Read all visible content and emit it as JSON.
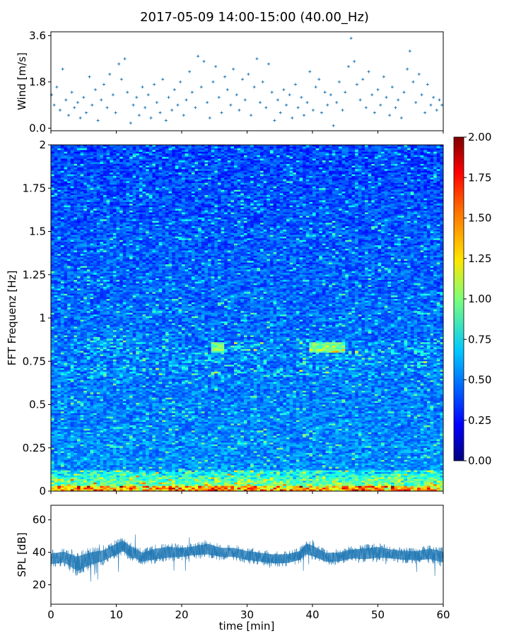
{
  "title": "2017-05-09 14:00-15:00 (40.00_Hz)",
  "chart_data": [
    {
      "type": "scatter",
      "ylabel": "Wind [m/s]",
      "xlim": [
        0,
        60
      ],
      "ylim": [
        0,
        3.6
      ],
      "yticks": [
        "0.0",
        "1.8",
        "3.6"
      ],
      "color": "#1f77b4",
      "marker": "+",
      "points": [
        [
          0.1,
          1.3
        ],
        [
          0.5,
          0.9
        ],
        [
          0.9,
          1.6
        ],
        [
          1.4,
          0.7
        ],
        [
          1.8,
          2.3
        ],
        [
          2.3,
          1.1
        ],
        [
          2.7,
          0.5
        ],
        [
          3.2,
          1.4
        ],
        [
          3.6,
          0.8
        ],
        [
          4.1,
          1.0
        ],
        [
          4.5,
          0.4
        ],
        [
          5.0,
          1.2
        ],
        [
          5.4,
          0.6
        ],
        [
          5.9,
          2.0
        ],
        [
          6.3,
          0.9
        ],
        [
          6.8,
          1.5
        ],
        [
          7.2,
          0.3
        ],
        [
          7.7,
          1.1
        ],
        [
          8.1,
          1.7
        ],
        [
          8.6,
          0.8
        ],
        [
          9.0,
          2.1
        ],
        [
          9.5,
          1.3
        ],
        [
          9.9,
          0.6
        ],
        [
          10.4,
          2.5
        ],
        [
          10.8,
          1.9
        ],
        [
          11.3,
          2.7
        ],
        [
          11.7,
          1.4
        ],
        [
          12.2,
          0.2
        ],
        [
          12.6,
          0.9
        ],
        [
          13.1,
          1.2
        ],
        [
          13.5,
          0.5
        ],
        [
          14.0,
          1.6
        ],
        [
          14.4,
          0.8
        ],
        [
          14.9,
          1.3
        ],
        [
          15.3,
          0.4
        ],
        [
          15.8,
          1.7
        ],
        [
          16.2,
          1.0
        ],
        [
          16.7,
          0.6
        ],
        [
          17.1,
          1.9
        ],
        [
          17.6,
          0.3
        ],
        [
          18.0,
          1.2
        ],
        [
          18.5,
          0.7
        ],
        [
          18.9,
          1.5
        ],
        [
          19.4,
          0.9
        ],
        [
          19.8,
          1.8
        ],
        [
          20.3,
          0.5
        ],
        [
          20.7,
          1.1
        ],
        [
          21.2,
          2.2
        ],
        [
          21.6,
          1.4
        ],
        [
          22.1,
          0.8
        ],
        [
          22.5,
          2.8
        ],
        [
          23.0,
          1.6
        ],
        [
          23.4,
          2.6
        ],
        [
          23.9,
          1.0
        ],
        [
          24.3,
          0.4
        ],
        [
          24.8,
          1.8
        ],
        [
          25.2,
          2.4
        ],
        [
          25.7,
          1.2
        ],
        [
          26.1,
          0.6
        ],
        [
          26.6,
          2.0
        ],
        [
          27.0,
          1.5
        ],
        [
          27.5,
          0.9
        ],
        [
          27.9,
          2.3
        ],
        [
          28.4,
          1.3
        ],
        [
          28.8,
          0.7
        ],
        [
          29.3,
          1.9
        ],
        [
          29.7,
          1.1
        ],
        [
          30.2,
          2.1
        ],
        [
          30.6,
          0.5
        ],
        [
          31.1,
          1.6
        ],
        [
          31.5,
          2.7
        ],
        [
          32.0,
          1.0
        ],
        [
          32.4,
          1.8
        ],
        [
          32.9,
          0.8
        ],
        [
          33.3,
          2.5
        ],
        [
          33.8,
          1.4
        ],
        [
          34.2,
          0.3
        ],
        [
          34.7,
          1.1
        ],
        [
          35.1,
          0.6
        ],
        [
          35.6,
          1.5
        ],
        [
          36.0,
          0.9
        ],
        [
          36.5,
          1.3
        ],
        [
          36.9,
          0.4
        ],
        [
          37.4,
          1.7
        ],
        [
          37.8,
          0.8
        ],
        [
          38.3,
          1.2
        ],
        [
          38.7,
          0.5
        ],
        [
          39.2,
          1.0
        ],
        [
          39.6,
          2.2
        ],
        [
          40.1,
          0.7
        ],
        [
          40.5,
          1.6
        ],
        [
          41.0,
          1.9
        ],
        [
          41.4,
          0.6
        ],
        [
          41.9,
          1.4
        ],
        [
          42.3,
          0.9
        ],
        [
          42.8,
          1.3
        ],
        [
          43.2,
          0.1
        ],
        [
          43.7,
          1.0
        ],
        [
          44.1,
          1.8
        ],
        [
          44.6,
          0.7
        ],
        [
          45.0,
          1.4
        ],
        [
          45.5,
          2.4
        ],
        [
          45.9,
          3.5
        ],
        [
          46.4,
          2.6
        ],
        [
          46.8,
          1.7
        ],
        [
          47.3,
          1.1
        ],
        [
          47.7,
          1.9
        ],
        [
          48.2,
          0.8
        ],
        [
          48.6,
          2.2
        ],
        [
          49.1,
          1.3
        ],
        [
          49.5,
          0.6
        ],
        [
          50.0,
          1.5
        ],
        [
          50.4,
          0.9
        ],
        [
          50.9,
          2.0
        ],
        [
          51.3,
          1.2
        ],
        [
          51.8,
          0.5
        ],
        [
          52.2,
          1.6
        ],
        [
          52.7,
          0.8
        ],
        [
          53.1,
          1.1
        ],
        [
          53.6,
          0.4
        ],
        [
          54.0,
          1.4
        ],
        [
          54.5,
          2.3
        ],
        [
          54.9,
          3.0
        ],
        [
          55.4,
          1.8
        ],
        [
          55.8,
          1.0
        ],
        [
          56.3,
          2.1
        ],
        [
          56.7,
          1.3
        ],
        [
          57.2,
          0.6
        ],
        [
          57.6,
          1.7
        ],
        [
          58.1,
          0.9
        ],
        [
          58.5,
          1.2
        ],
        [
          59.0,
          0.7
        ],
        [
          59.4,
          1.1
        ],
        [
          59.8,
          0.9
        ]
      ]
    },
    {
      "type": "heatmap",
      "ylabel": "FFT Frequenz [Hz]",
      "xlim": [
        0,
        60
      ],
      "ylim": [
        0,
        2
      ],
      "yticks": [
        "0",
        "0.25",
        "0.5",
        "0.75",
        "1",
        "1.25",
        "1.5",
        "1.75",
        "2"
      ],
      "colormap": "jet",
      "colorbar": {
        "range": [
          0,
          2
        ],
        "ticks": [
          "0.00",
          "0.25",
          "0.50",
          "0.75",
          "1.00",
          "1.25",
          "1.50",
          "1.75",
          "2.00"
        ]
      }
    },
    {
      "type": "line",
      "xlabel": "time [min]",
      "ylabel": "SPL [dB]",
      "xlim": [
        0,
        60
      ],
      "ylim": [
        8,
        69
      ],
      "xticks": [
        "0",
        "10",
        "20",
        "30",
        "40",
        "50",
        "60"
      ],
      "yticks": [
        "20",
        "40",
        "60"
      ],
      "color": "#1f77b4",
      "x": [
        0,
        2,
        4,
        6,
        8,
        10,
        11,
        12,
        14,
        16,
        18,
        20,
        22,
        24,
        26,
        28,
        30,
        32,
        34,
        36,
        38,
        39,
        40,
        42,
        44,
        46,
        48,
        50,
        52,
        54,
        56,
        58,
        60
      ],
      "mean": [
        36,
        37,
        33,
        36,
        38,
        42,
        44,
        41,
        37,
        39,
        40,
        40,
        41,
        42,
        40,
        40,
        38,
        37,
        36,
        36,
        38,
        42,
        41,
        37,
        37,
        39,
        39,
        40,
        39,
        38,
        38,
        39,
        37
      ],
      "spread": [
        6,
        6,
        8,
        7,
        6,
        6,
        6,
        6,
        5,
        6,
        6,
        5,
        5,
        6,
        5,
        5,
        5,
        5,
        5,
        5,
        5,
        6,
        6,
        5,
        5,
        5,
        6,
        6,
        5,
        5,
        5,
        6,
        6
      ]
    }
  ]
}
